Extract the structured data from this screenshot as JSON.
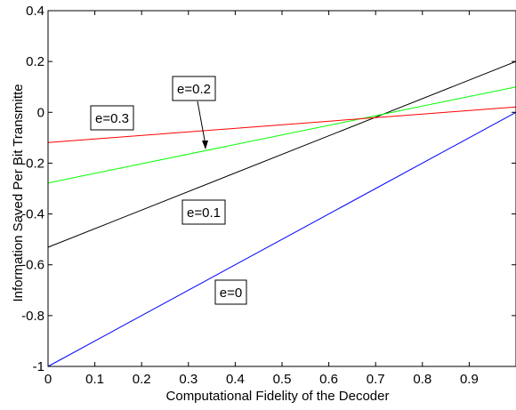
{
  "chart_data": {
    "type": "line",
    "title": "",
    "xlabel": "Computational Fidelity of the Decoder",
    "ylabel": "Information Saved Per Bit Transmitte",
    "xlim": [
      0,
      1
    ],
    "ylim": [
      -1,
      0.4
    ],
    "xticks": [
      "0",
      "0.1",
      "0.2",
      "0.3",
      "0.4",
      "0.5",
      "0.6",
      "0.7",
      "0.8",
      "0.9"
    ],
    "yticks": [
      "-1",
      "-0.8",
      "-0.6",
      "-0.4",
      "-0.2",
      "0",
      "0.2",
      "0.4"
    ],
    "grid": false,
    "series": [
      {
        "name": "e=0",
        "color": "#0000ff",
        "x": [
          0,
          1
        ],
        "values": [
          -1.0,
          0.0
        ]
      },
      {
        "name": "e=0.1",
        "color": "#000000",
        "x": [
          0,
          1
        ],
        "values": [
          -0.531,
          0.2
        ]
      },
      {
        "name": "e=0.2",
        "color": "#00ff00",
        "x": [
          0,
          1
        ],
        "values": [
          -0.278,
          0.1
        ]
      },
      {
        "name": "e=0.3",
        "color": "#ff0000",
        "x": [
          0,
          1
        ],
        "values": [
          -0.119,
          0.021
        ]
      }
    ],
    "annotations": [
      {
        "text": "e=0.3",
        "series": "e=0.3"
      },
      {
        "text": "e=0.2",
        "series": "e=0.2"
      },
      {
        "text": "e=0.1",
        "series": "e=0.1"
      },
      {
        "text": "e=0",
        "series": "e=0"
      }
    ]
  }
}
